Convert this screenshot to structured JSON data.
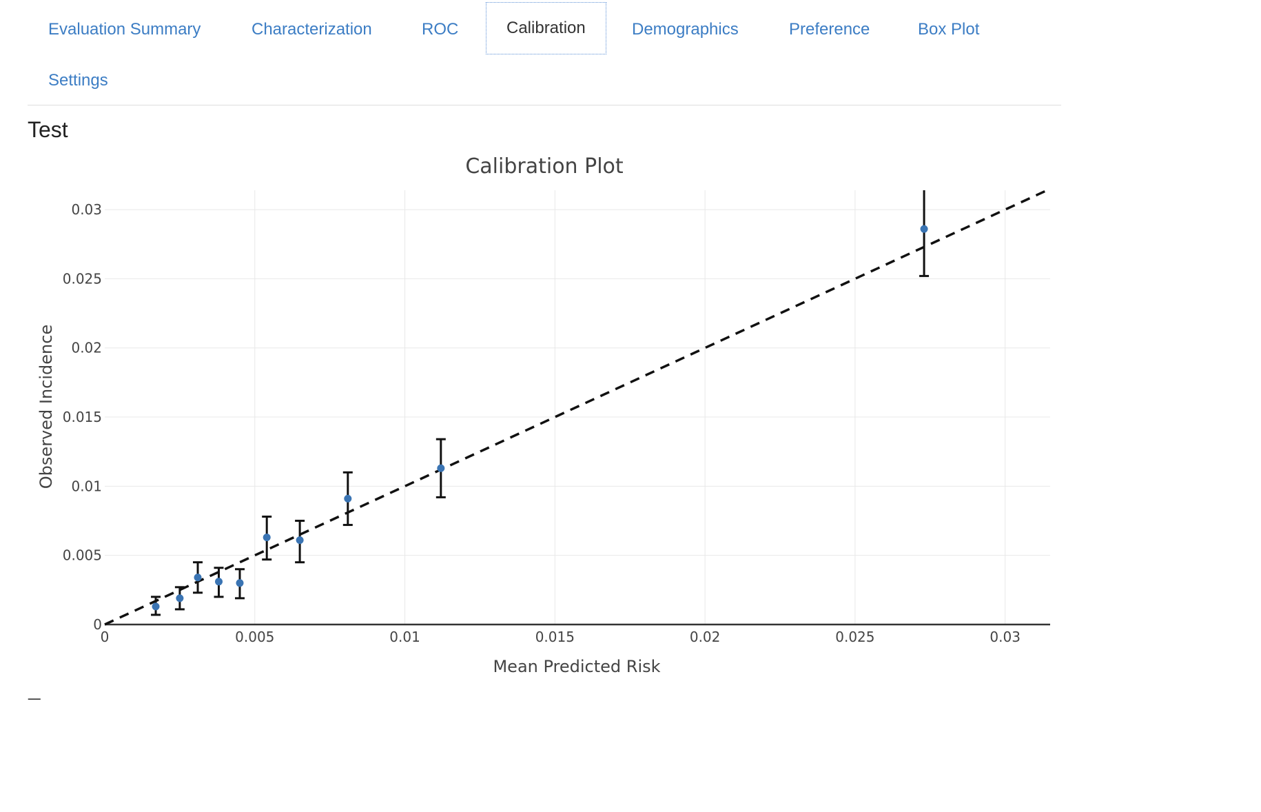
{
  "tabs": [
    {
      "label": "Evaluation Summary"
    },
    {
      "label": "Characterization"
    },
    {
      "label": "ROC"
    },
    {
      "label": "Calibration",
      "active": true
    },
    {
      "label": "Demographics"
    },
    {
      "label": "Preference"
    },
    {
      "label": "Box Plot"
    },
    {
      "label": "Settings"
    }
  ],
  "section": {
    "title": "Test"
  },
  "colors": {
    "tab_link": "#3c7dc4",
    "point": "#3a74b3",
    "error_bar": "#111111",
    "diagonal": "#111111",
    "grid": "#e8e8e8"
  },
  "chart_data": {
    "type": "scatter",
    "title": "Calibration Plot",
    "xlabel": "Mean Predicted Risk",
    "ylabel": "Observed Incidence",
    "xlim": [
      0,
      0.0315
    ],
    "ylim": [
      0,
      0.0314
    ],
    "grid": true,
    "xticks": [
      {
        "value": 0,
        "label": "0"
      },
      {
        "value": 0.005,
        "label": "0.005"
      },
      {
        "value": 0.01,
        "label": "0.01"
      },
      {
        "value": 0.015,
        "label": "0.015"
      },
      {
        "value": 0.02,
        "label": "0.02"
      },
      {
        "value": 0.025,
        "label": "0.025"
      },
      {
        "value": 0.03,
        "label": "0.03"
      }
    ],
    "yticks": [
      {
        "value": 0,
        "label": "0"
      },
      {
        "value": 0.005,
        "label": "0.005"
      },
      {
        "value": 0.01,
        "label": "0.01"
      },
      {
        "value": 0.015,
        "label": "0.015"
      },
      {
        "value": 0.02,
        "label": "0.02"
      },
      {
        "value": 0.025,
        "label": "0.025"
      },
      {
        "value": 0.03,
        "label": "0.03"
      }
    ],
    "reference_line": {
      "style": "dashed",
      "from": [
        0,
        0
      ],
      "to": [
        0.0315,
        0.0315
      ]
    },
    "points": [
      {
        "x": 0.0017,
        "y": 0.0013,
        "lower": 0.0007,
        "upper": 0.002
      },
      {
        "x": 0.0025,
        "y": 0.0019,
        "lower": 0.0011,
        "upper": 0.0027
      },
      {
        "x": 0.0031,
        "y": 0.0034,
        "lower": 0.0023,
        "upper": 0.0045
      },
      {
        "x": 0.0038,
        "y": 0.0031,
        "lower": 0.002,
        "upper": 0.0041
      },
      {
        "x": 0.0045,
        "y": 0.003,
        "lower": 0.0019,
        "upper": 0.004
      },
      {
        "x": 0.0054,
        "y": 0.0063,
        "lower": 0.0047,
        "upper": 0.0078
      },
      {
        "x": 0.0065,
        "y": 0.0061,
        "lower": 0.0045,
        "upper": 0.0075
      },
      {
        "x": 0.0081,
        "y": 0.0091,
        "lower": 0.0072,
        "upper": 0.011
      },
      {
        "x": 0.0112,
        "y": 0.0113,
        "lower": 0.0092,
        "upper": 0.0134
      },
      {
        "x": 0.0273,
        "y": 0.0286,
        "lower": 0.0252,
        "upper": 0.032
      }
    ]
  }
}
